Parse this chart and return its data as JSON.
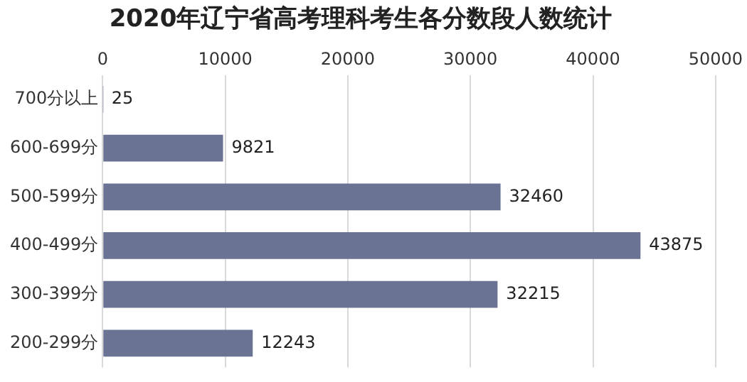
{
  "chart_data": {
    "type": "bar",
    "orientation": "horizontal",
    "title": "2020年辽宁省高考理科考生各分数段人数统计",
    "categories": [
      "700分以上",
      "600-699分",
      "500-599分",
      "400-499分",
      "300-399分",
      "200-299分"
    ],
    "values": [
      25,
      9821,
      32460,
      43875,
      32215,
      12243
    ],
    "color": "#6b7394",
    "xlim": [
      0,
      50000
    ],
    "xticks": [
      0,
      10000,
      20000,
      30000,
      40000,
      50000
    ],
    "grid": "x",
    "data_labels": true,
    "legend": false
  }
}
